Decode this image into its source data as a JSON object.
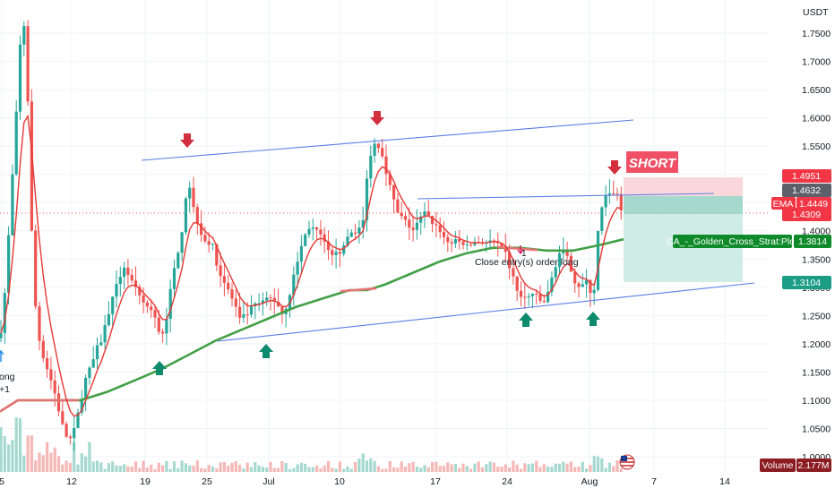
{
  "currency": "USDT",
  "y_ticks": [
    "1.7500",
    "1.7000",
    "1.6500",
    "1.6000",
    "1.5500",
    "1.5000",
    "1.4500",
    "1.4000",
    "1.3500",
    "1.3000",
    "1.2500",
    "1.2000",
    "1.1500",
    "1.1000",
    "1.0500",
    "1.0000"
  ],
  "x_ticks": [
    "5",
    "12",
    "19",
    "25",
    "Jul",
    "10",
    "17",
    "24",
    "Aug",
    "7",
    "14"
  ],
  "price_labels": {
    "tp_top": "1.4951",
    "current": "1.4632",
    "ema_label": "EMA",
    "ema_value": "1.4449",
    "entry": "1.4309",
    "strat_label": "CA_-_Golden_Cross_Strat:Plot",
    "strat_value": "1.3814",
    "stop_bottom": "1.3104",
    "volume_label": "Volume",
    "volume_value": "2.177M"
  },
  "annotations": {
    "short_label": "SHORT",
    "close_entry": "Close entry(s) order long",
    "left_edge_text_1": "ong",
    "left_edge_text_2": "+1",
    "sell_arrow_marks": "↓",
    "buy_arrow_marks": "↑"
  },
  "colors": {
    "bull": "#26a69a",
    "bear": "#ef5350",
    "ema_fast": "#e53935",
    "ema_slow": "#43a047",
    "trendline": "#5b7ee5",
    "sell_arrow": "#d32f3f",
    "buy_arrow": "#0e8a6c",
    "short_bg": "#ef5066",
    "loss_zone": "#f8c7cd",
    "profit_zone": "#b2dfd4"
  }
}
